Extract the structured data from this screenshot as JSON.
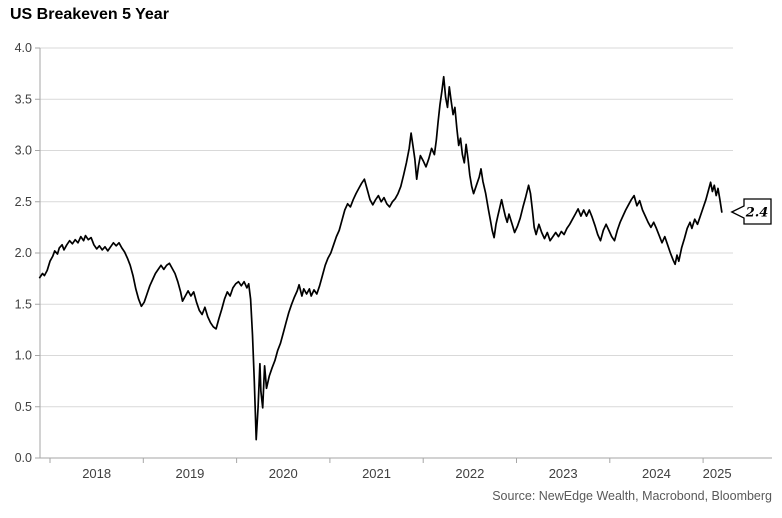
{
  "header": {
    "title": "US Breakeven 5 Year"
  },
  "footer": {
    "source": "Source: NewEdge Wealth, Macrobond, Bloomberg"
  },
  "callout": {
    "value": "2.4"
  },
  "colors": {
    "line": "#000000",
    "grid": "#d9d9d9",
    "axis": "#a6a6a6",
    "tick_text": "#404040",
    "source_text": "#595959",
    "callout_border": "#000000",
    "callout_fill": "#ffffff"
  },
  "chart_data": {
    "type": "line",
    "title": "US Breakeven 5 Year",
    "xlabel": "",
    "ylabel": "",
    "grid": true,
    "legend_position": "none",
    "ylim": [
      0.0,
      4.0
    ],
    "y_ticks": [
      4.0,
      3.5,
      3.0,
      2.5,
      2.0,
      1.5,
      1.0,
      0.5,
      0.0
    ],
    "x_ticks": [
      2018,
      2019,
      2020,
      2021,
      2022,
      2023,
      2024,
      2025
    ],
    "last_value_label": "2.4",
    "series": [
      {
        "name": "US Breakeven 5 Year",
        "points": [
          [
            2017.89,
            1.76
          ],
          [
            2017.92,
            1.8
          ],
          [
            2017.94,
            1.78
          ],
          [
            2017.97,
            1.83
          ],
          [
            2018.0,
            1.92
          ],
          [
            2018.03,
            1.97
          ],
          [
            2018.05,
            2.02
          ],
          [
            2018.08,
            1.99
          ],
          [
            2018.1,
            2.05
          ],
          [
            2018.13,
            2.08
          ],
          [
            2018.15,
            2.03
          ],
          [
            2018.18,
            2.08
          ],
          [
            2018.21,
            2.12
          ],
          [
            2018.24,
            2.09
          ],
          [
            2018.27,
            2.13
          ],
          [
            2018.3,
            2.1
          ],
          [
            2018.33,
            2.16
          ],
          [
            2018.36,
            2.12
          ],
          [
            2018.38,
            2.17
          ],
          [
            2018.41,
            2.13
          ],
          [
            2018.44,
            2.15
          ],
          [
            2018.47,
            2.08
          ],
          [
            2018.5,
            2.04
          ],
          [
            2018.53,
            2.07
          ],
          [
            2018.56,
            2.03
          ],
          [
            2018.59,
            2.06
          ],
          [
            2018.62,
            2.02
          ],
          [
            2018.65,
            2.06
          ],
          [
            2018.68,
            2.1
          ],
          [
            2018.71,
            2.07
          ],
          [
            2018.74,
            2.1
          ],
          [
            2018.77,
            2.05
          ],
          [
            2018.8,
            2.01
          ],
          [
            2018.83,
            1.95
          ],
          [
            2018.86,
            1.88
          ],
          [
            2018.89,
            1.78
          ],
          [
            2018.92,
            1.65
          ],
          [
            2018.95,
            1.55
          ],
          [
            2018.98,
            1.48
          ],
          [
            2019.01,
            1.52
          ],
          [
            2019.04,
            1.6
          ],
          [
            2019.07,
            1.68
          ],
          [
            2019.1,
            1.74
          ],
          [
            2019.13,
            1.8
          ],
          [
            2019.16,
            1.84
          ],
          [
            2019.19,
            1.88
          ],
          [
            2019.22,
            1.84
          ],
          [
            2019.25,
            1.88
          ],
          [
            2019.28,
            1.9
          ],
          [
            2019.31,
            1.85
          ],
          [
            2019.34,
            1.8
          ],
          [
            2019.37,
            1.72
          ],
          [
            2019.4,
            1.62
          ],
          [
            2019.42,
            1.53
          ],
          [
            2019.45,
            1.58
          ],
          [
            2019.48,
            1.63
          ],
          [
            2019.51,
            1.58
          ],
          [
            2019.54,
            1.62
          ],
          [
            2019.57,
            1.52
          ],
          [
            2019.6,
            1.44
          ],
          [
            2019.63,
            1.4
          ],
          [
            2019.66,
            1.47
          ],
          [
            2019.69,
            1.38
          ],
          [
            2019.72,
            1.32
          ],
          [
            2019.75,
            1.28
          ],
          [
            2019.78,
            1.26
          ],
          [
            2019.81,
            1.36
          ],
          [
            2019.84,
            1.45
          ],
          [
            2019.87,
            1.55
          ],
          [
            2019.9,
            1.62
          ],
          [
            2019.93,
            1.58
          ],
          [
            2019.96,
            1.66
          ],
          [
            2019.99,
            1.7
          ],
          [
            2020.02,
            1.72
          ],
          [
            2020.05,
            1.68
          ],
          [
            2020.08,
            1.72
          ],
          [
            2020.11,
            1.66
          ],
          [
            2020.13,
            1.7
          ],
          [
            2020.15,
            1.55
          ],
          [
            2020.17,
            1.2
          ],
          [
            2020.19,
            0.75
          ],
          [
            2020.21,
            0.18
          ],
          [
            2020.23,
            0.5
          ],
          [
            2020.25,
            0.92
          ],
          [
            2020.26,
            0.65
          ],
          [
            2020.28,
            0.49
          ],
          [
            2020.3,
            0.9
          ],
          [
            2020.32,
            0.68
          ],
          [
            2020.35,
            0.8
          ],
          [
            2020.38,
            0.88
          ],
          [
            2020.41,
            0.95
          ],
          [
            2020.44,
            1.05
          ],
          [
            2020.47,
            1.12
          ],
          [
            2020.5,
            1.22
          ],
          [
            2020.53,
            1.32
          ],
          [
            2020.56,
            1.42
          ],
          [
            2020.59,
            1.5
          ],
          [
            2020.62,
            1.57
          ],
          [
            2020.65,
            1.63
          ],
          [
            2020.67,
            1.69
          ],
          [
            2020.7,
            1.58
          ],
          [
            2020.72,
            1.65
          ],
          [
            2020.75,
            1.6
          ],
          [
            2020.78,
            1.65
          ],
          [
            2020.8,
            1.58
          ],
          [
            2020.83,
            1.64
          ],
          [
            2020.86,
            1.6
          ],
          [
            2020.89,
            1.68
          ],
          [
            2020.92,
            1.78
          ],
          [
            2020.95,
            1.88
          ],
          [
            2020.98,
            1.95
          ],
          [
            2021.01,
            2.0
          ],
          [
            2021.04,
            2.08
          ],
          [
            2021.07,
            2.16
          ],
          [
            2021.1,
            2.22
          ],
          [
            2021.13,
            2.32
          ],
          [
            2021.16,
            2.42
          ],
          [
            2021.19,
            2.48
          ],
          [
            2021.22,
            2.45
          ],
          [
            2021.25,
            2.52
          ],
          [
            2021.28,
            2.58
          ],
          [
            2021.31,
            2.63
          ],
          [
            2021.34,
            2.68
          ],
          [
            2021.37,
            2.72
          ],
          [
            2021.4,
            2.62
          ],
          [
            2021.43,
            2.52
          ],
          [
            2021.46,
            2.47
          ],
          [
            2021.49,
            2.52
          ],
          [
            2021.52,
            2.56
          ],
          [
            2021.55,
            2.5
          ],
          [
            2021.58,
            2.54
          ],
          [
            2021.61,
            2.48
          ],
          [
            2021.64,
            2.45
          ],
          [
            2021.67,
            2.5
          ],
          [
            2021.7,
            2.53
          ],
          [
            2021.73,
            2.58
          ],
          [
            2021.76,
            2.65
          ],
          [
            2021.79,
            2.76
          ],
          [
            2021.82,
            2.88
          ],
          [
            2021.85,
            3.02
          ],
          [
            2021.87,
            3.17
          ],
          [
            2021.89,
            3.05
          ],
          [
            2021.91,
            2.92
          ],
          [
            2021.93,
            2.72
          ],
          [
            2021.95,
            2.85
          ],
          [
            2021.97,
            2.95
          ],
          [
            2022.0,
            2.9
          ],
          [
            2022.03,
            2.84
          ],
          [
            2022.06,
            2.92
          ],
          [
            2022.09,
            3.02
          ],
          [
            2022.12,
            2.96
          ],
          [
            2022.14,
            3.1
          ],
          [
            2022.16,
            3.28
          ],
          [
            2022.18,
            3.45
          ],
          [
            2022.2,
            3.58
          ],
          [
            2022.22,
            3.72
          ],
          [
            2022.24,
            3.52
          ],
          [
            2022.26,
            3.42
          ],
          [
            2022.28,
            3.62
          ],
          [
            2022.3,
            3.48
          ],
          [
            2022.32,
            3.35
          ],
          [
            2022.34,
            3.42
          ],
          [
            2022.36,
            3.22
          ],
          [
            2022.38,
            3.05
          ],
          [
            2022.4,
            3.12
          ],
          [
            2022.42,
            2.96
          ],
          [
            2022.44,
            2.88
          ],
          [
            2022.46,
            3.06
          ],
          [
            2022.48,
            2.92
          ],
          [
            2022.5,
            2.76
          ],
          [
            2022.52,
            2.65
          ],
          [
            2022.54,
            2.58
          ],
          [
            2022.57,
            2.66
          ],
          [
            2022.6,
            2.74
          ],
          [
            2022.62,
            2.82
          ],
          [
            2022.64,
            2.7
          ],
          [
            2022.67,
            2.58
          ],
          [
            2022.7,
            2.42
          ],
          [
            2022.72,
            2.32
          ],
          [
            2022.74,
            2.22
          ],
          [
            2022.76,
            2.15
          ],
          [
            2022.78,
            2.28
          ],
          [
            2022.8,
            2.36
          ],
          [
            2022.82,
            2.44
          ],
          [
            2022.84,
            2.52
          ],
          [
            2022.86,
            2.44
          ],
          [
            2022.88,
            2.36
          ],
          [
            2022.9,
            2.3
          ],
          [
            2022.92,
            2.38
          ],
          [
            2022.94,
            2.32
          ],
          [
            2022.96,
            2.26
          ],
          [
            2022.98,
            2.2
          ],
          [
            2023.01,
            2.26
          ],
          [
            2023.04,
            2.34
          ],
          [
            2023.07,
            2.45
          ],
          [
            2023.1,
            2.55
          ],
          [
            2023.13,
            2.66
          ],
          [
            2023.15,
            2.58
          ],
          [
            2023.17,
            2.42
          ],
          [
            2023.19,
            2.25
          ],
          [
            2023.21,
            2.18
          ],
          [
            2023.24,
            2.28
          ],
          [
            2023.27,
            2.2
          ],
          [
            2023.3,
            2.14
          ],
          [
            2023.33,
            2.2
          ],
          [
            2023.36,
            2.12
          ],
          [
            2023.39,
            2.16
          ],
          [
            2023.42,
            2.2
          ],
          [
            2023.45,
            2.16
          ],
          [
            2023.48,
            2.21
          ],
          [
            2023.51,
            2.18
          ],
          [
            2023.54,
            2.24
          ],
          [
            2023.57,
            2.28
          ],
          [
            2023.6,
            2.33
          ],
          [
            2023.63,
            2.38
          ],
          [
            2023.66,
            2.43
          ],
          [
            2023.69,
            2.36
          ],
          [
            2023.72,
            2.42
          ],
          [
            2023.75,
            2.36
          ],
          [
            2023.78,
            2.42
          ],
          [
            2023.81,
            2.35
          ],
          [
            2023.84,
            2.27
          ],
          [
            2023.87,
            2.18
          ],
          [
            2023.9,
            2.12
          ],
          [
            2023.93,
            2.22
          ],
          [
            2023.96,
            2.28
          ],
          [
            2023.99,
            2.22
          ],
          [
            2024.02,
            2.16
          ],
          [
            2024.05,
            2.12
          ],
          [
            2024.08,
            2.22
          ],
          [
            2024.11,
            2.3
          ],
          [
            2024.14,
            2.36
          ],
          [
            2024.17,
            2.42
          ],
          [
            2024.2,
            2.47
          ],
          [
            2024.23,
            2.52
          ],
          [
            2024.26,
            2.56
          ],
          [
            2024.29,
            2.46
          ],
          [
            2024.32,
            2.51
          ],
          [
            2024.35,
            2.42
          ],
          [
            2024.38,
            2.36
          ],
          [
            2024.41,
            2.3
          ],
          [
            2024.44,
            2.25
          ],
          [
            2024.47,
            2.3
          ],
          [
            2024.5,
            2.24
          ],
          [
            2024.53,
            2.17
          ],
          [
            2024.56,
            2.1
          ],
          [
            2024.59,
            2.16
          ],
          [
            2024.62,
            2.08
          ],
          [
            2024.65,
            2.0
          ],
          [
            2024.68,
            1.93
          ],
          [
            2024.7,
            1.89
          ],
          [
            2024.72,
            1.98
          ],
          [
            2024.74,
            1.92
          ],
          [
            2024.77,
            2.05
          ],
          [
            2024.8,
            2.14
          ],
          [
            2024.83,
            2.24
          ],
          [
            2024.86,
            2.3
          ],
          [
            2024.88,
            2.24
          ],
          [
            2024.91,
            2.33
          ],
          [
            2024.94,
            2.28
          ],
          [
            2024.97,
            2.36
          ],
          [
            2025.0,
            2.44
          ],
          [
            2025.03,
            2.52
          ],
          [
            2025.06,
            2.62
          ],
          [
            2025.08,
            2.69
          ],
          [
            2025.1,
            2.6
          ],
          [
            2025.12,
            2.66
          ],
          [
            2025.14,
            2.56
          ],
          [
            2025.16,
            2.63
          ],
          [
            2025.18,
            2.52
          ],
          [
            2025.2,
            2.4
          ]
        ]
      }
    ]
  }
}
